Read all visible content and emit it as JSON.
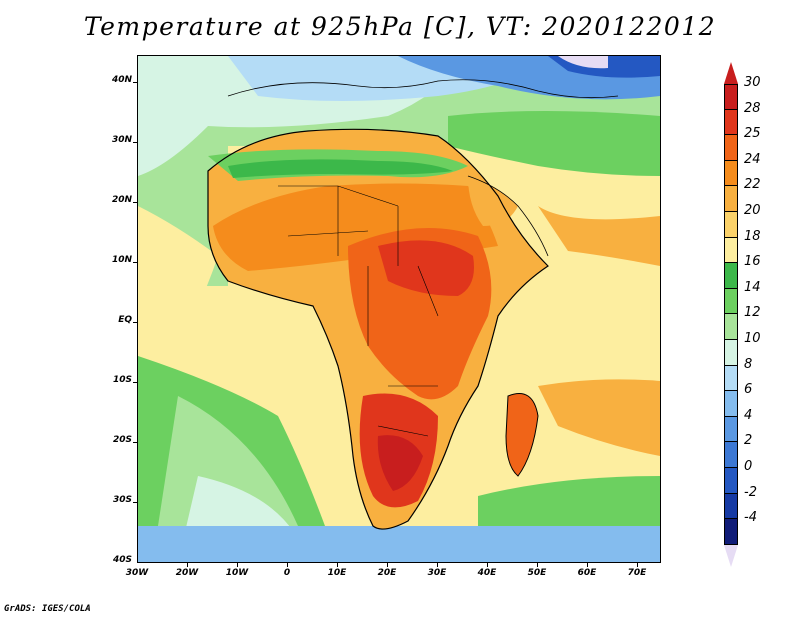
{
  "title": "Temperature at 925hPa [C], VT: 2020122012",
  "credit": "GrADS: IGES/COLA",
  "map": {
    "region": "Africa and surrounding oceans",
    "variable": "Temperature at 925hPa",
    "units": "C",
    "valid_time": "2020122012",
    "lon_range": [
      -30,
      75
    ],
    "lat_range": [
      -40,
      45
    ],
    "lat_labels": [
      "40N",
      "30N",
      "20N",
      "10N",
      "EQ",
      "10S",
      "20S",
      "30S",
      "40S"
    ],
    "lat_values": [
      40,
      30,
      20,
      10,
      0,
      -10,
      -20,
      -30,
      -40
    ],
    "lon_labels": [
      "30W",
      "20W",
      "10W",
      "0",
      "10E",
      "20E",
      "30E",
      "40E",
      "50E",
      "60E",
      "70E"
    ],
    "lon_values": [
      -30,
      -20,
      -10,
      0,
      10,
      20,
      30,
      40,
      50,
      60,
      70
    ]
  },
  "colorbar": {
    "labels": [
      "30",
      "28",
      "25",
      "24",
      "22",
      "20",
      "18",
      "16",
      "14",
      "12",
      "10",
      "8",
      "6",
      "4",
      "2",
      "0",
      "-2",
      "-4"
    ],
    "bins": [
      {
        "color": "#c81e1e"
      },
      {
        "color": "#e0361c"
      },
      {
        "color": "#f06418"
      },
      {
        "color": "#f58c1c"
      },
      {
        "color": "#f8b040"
      },
      {
        "color": "#fbd26a"
      },
      {
        "color": "#fdeea0"
      },
      {
        "color": "#3cb84a"
      },
      {
        "color": "#6cd060"
      },
      {
        "color": "#a8e49a"
      },
      {
        "color": "#d6f4e4"
      },
      {
        "color": "#b4dcf6"
      },
      {
        "color": "#84bcee"
      },
      {
        "color": "#5a98e2"
      },
      {
        "color": "#3c78d4"
      },
      {
        "color": "#2458c2"
      },
      {
        "color": "#163aa4"
      },
      {
        "color": "#101c78"
      }
    ],
    "top_color": "#c81e1e",
    "bottom_color": "#e6dcf4"
  }
}
